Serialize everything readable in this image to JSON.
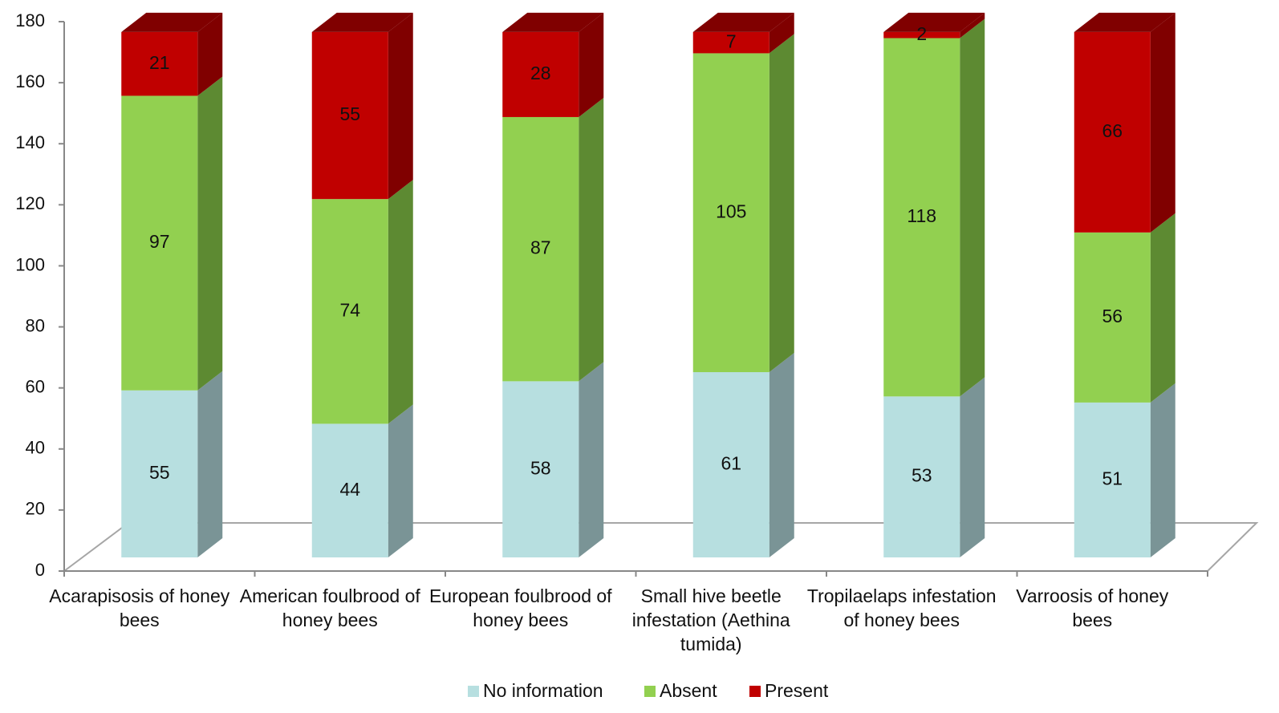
{
  "chart_data": {
    "type": "bar3d_stacked",
    "categories": [
      "Acarapisosis of honey bees",
      "American foulbrood of honey bees",
      "European foulbrood of honey bees",
      "Small hive beetle infestation (Aethina tumida)",
      "Tropilaelaps infestation of honey bees",
      "Varroosis of honey bees"
    ],
    "series": [
      {
        "name": "No information",
        "color": "#b7dfe0",
        "side": "#7a9496",
        "values": [
          55,
          44,
          58,
          61,
          53,
          51
        ]
      },
      {
        "name": "Absent",
        "color": "#92d050",
        "side": "#5d8a32",
        "values": [
          97,
          74,
          87,
          105,
          118,
          56
        ]
      },
      {
        "name": "Present",
        "color": "#c00000",
        "side": "#800000",
        "values": [
          21,
          55,
          28,
          7,
          2,
          66
        ]
      }
    ],
    "ylim": [
      0,
      180
    ],
    "yticks": [
      0,
      20,
      40,
      60,
      80,
      100,
      120,
      140,
      160,
      180
    ],
    "legend": "bottom"
  }
}
